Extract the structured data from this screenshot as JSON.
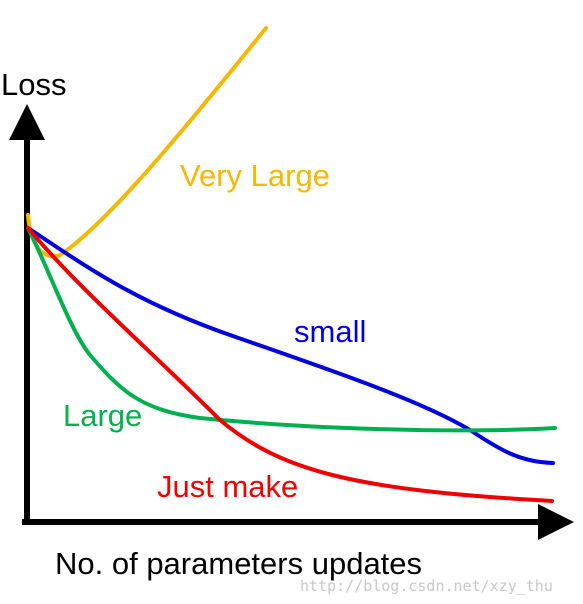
{
  "axes": {
    "y_label": "Loss",
    "x_label": "No. of parameters updates"
  },
  "curves": {
    "very_large": "Very Large",
    "small": "small",
    "large": "Large",
    "just_make": "Just make"
  },
  "watermark": "http://blog.csdn.net/xzy_thu"
}
